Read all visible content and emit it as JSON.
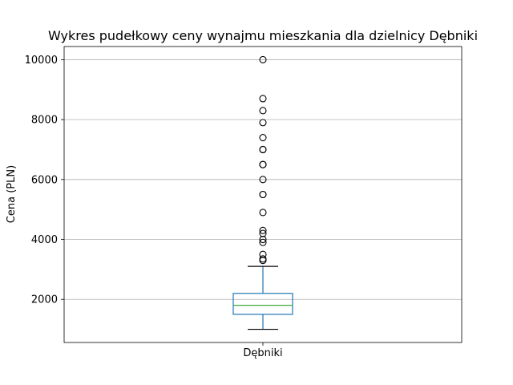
{
  "chart_data": {
    "type": "box",
    "title": "Wykres pudełkowy ceny wynajmu mieszkania dla dzielnicy  Dębniki",
    "xlabel": "",
    "ylabel": "Cena (PLN)",
    "categories": [
      "Dębniki"
    ],
    "ylim": [
      560,
      10440
    ],
    "yticks": [
      2000,
      4000,
      6000,
      8000,
      10000
    ],
    "grid": "horizontal",
    "box": {
      "whisker_low": 1000,
      "q1": 1500,
      "median": 1800,
      "q3": 2200,
      "whisker_high": 3100
    },
    "outliers": [
      3300,
      3350,
      3500,
      3900,
      4000,
      4200,
      4300,
      4900,
      5500,
      5500,
      6000,
      6500,
      6500,
      7000,
      7000,
      7400,
      7900,
      8300,
      8700,
      10000
    ],
    "colors": {
      "box": "#1f77b4",
      "median": "#2ca02c",
      "whisker": "#000000",
      "outlier": "#000000",
      "grid": "#b0b0b0"
    }
  }
}
